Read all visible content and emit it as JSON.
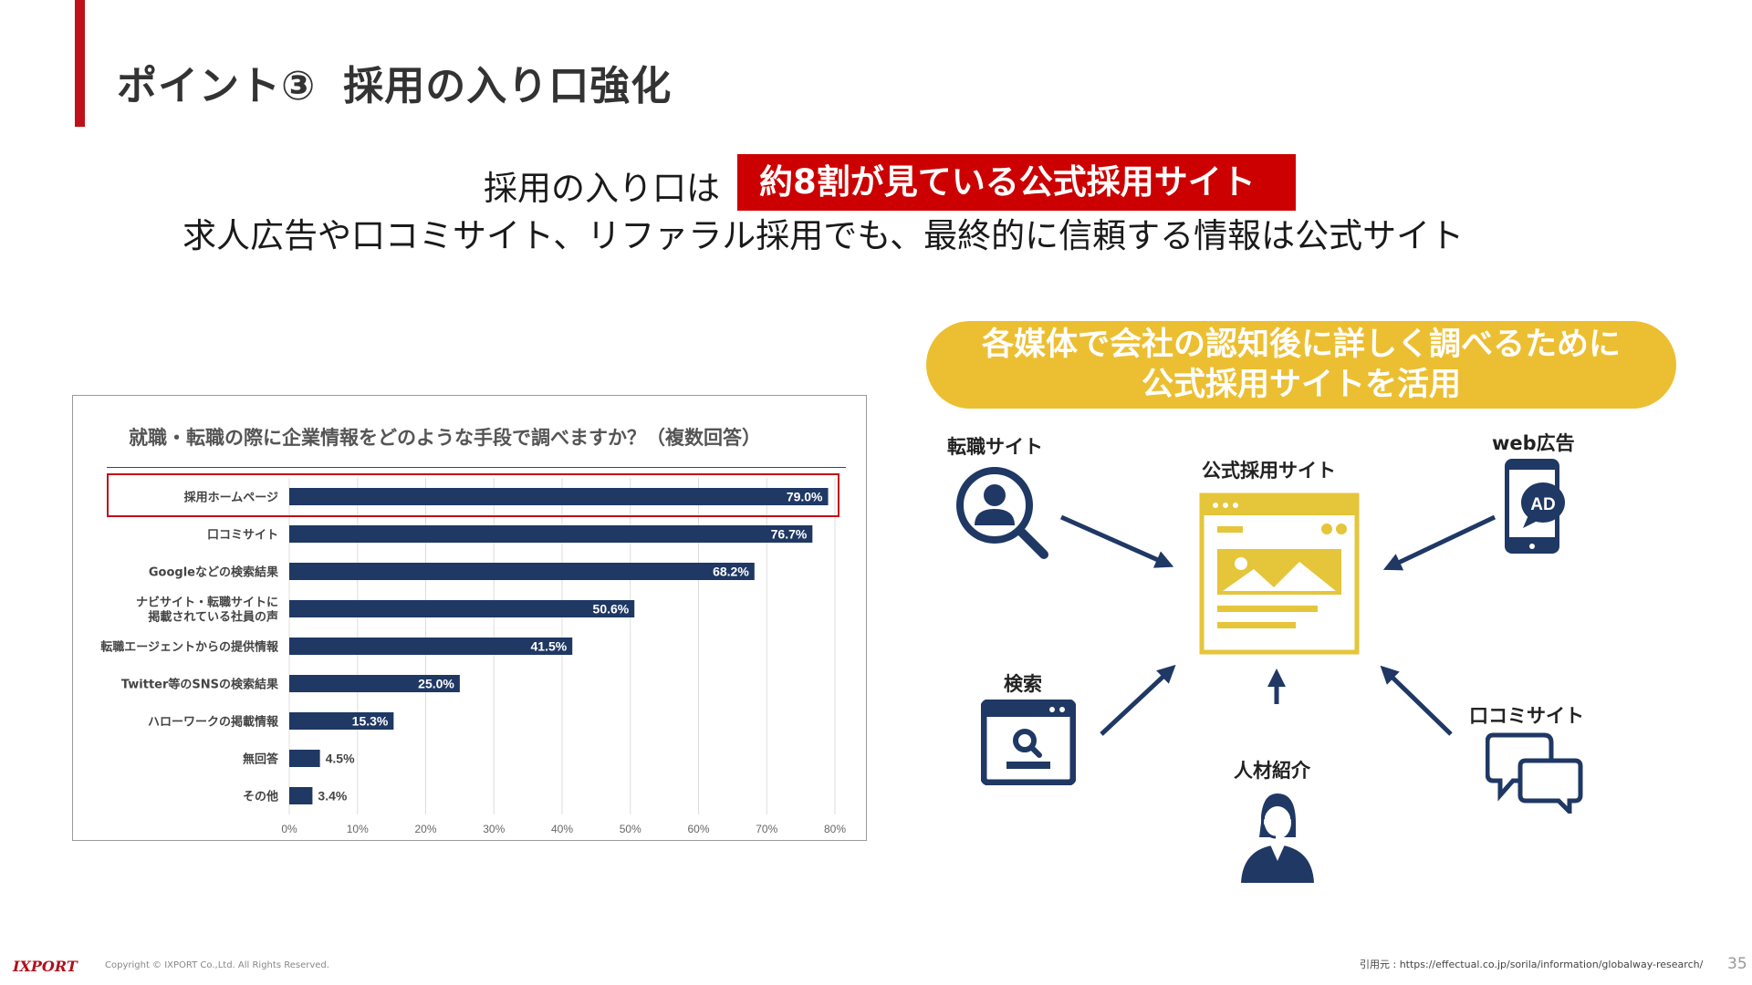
{
  "slide": {
    "title_part1": "ポイント③",
    "title_part2": "採用の入り口強化",
    "headline1_prefix": "採用の入り口は",
    "headline1_highlight": "約8割が見ている公式採用サイト",
    "headline2": "求人広告や口コミサイト、リファラル採用でも、最終的に信頼する情報は公式サイト",
    "accent_color": "#c0101a",
    "highlight_color": "#cc0000",
    "pill_color": "#ecbf32",
    "navy_color": "#1f3864"
  },
  "chart_data": {
    "type": "bar",
    "orientation": "horizontal",
    "title": "就職・転職の際に企業情報をどのような手段で調べますか？（複数回答）",
    "categories": [
      [
        "採用ホームページ"
      ],
      [
        "口コミサイト"
      ],
      [
        "Googleなどの検索結果"
      ],
      [
        "ナビサイト・転職サイトに",
        "掲載されている社員の声"
      ],
      [
        "転職エージェントからの提供情報"
      ],
      [
        "Twitter等のSNSの検索結果"
      ],
      [
        "ハローワークの掲載情報"
      ],
      [
        "無回答"
      ],
      [
        "その他"
      ]
    ],
    "values": [
      79.0,
      76.7,
      68.2,
      50.6,
      41.5,
      25.0,
      15.3,
      4.5,
      3.4
    ],
    "value_labels": [
      "79.0%",
      "76.7%",
      "68.2%",
      "50.6%",
      "41.5%",
      "25.0%",
      "15.3%",
      "4.5%",
      "3.4%"
    ],
    "xlim": [
      0,
      80
    ],
    "xticks": [
      "0%",
      "10%",
      "20%",
      "30%",
      "40%",
      "50%",
      "60%",
      "70%",
      "80%"
    ],
    "grid": true,
    "highlighted_category": "採用ホームページ",
    "bar_color": "#1f3864"
  },
  "diagram": {
    "pill_line1": "各媒体で会社の認知後に詳しく調べるために",
    "pill_line2": "公式採用サイトを活用",
    "center_label": "公式採用サイト",
    "nodes": {
      "job_site": "転職サイト",
      "web_ad": "web広告",
      "search": "検索",
      "review_site": "口コミサイト",
      "referral": "人材紹介"
    },
    "ad_badge": "AD",
    "icons": {
      "job_site": "magnifier-person-icon",
      "web_ad": "smartphone-ad-icon",
      "search": "browser-search-icon",
      "review_site": "chat-bubbles-icon",
      "referral": "person-headset-icon",
      "center": "website-icon"
    }
  },
  "footer": {
    "logo": "IXPORT",
    "copyright": "Copyright © IXPORT Co.,Ltd. All Rights Reserved.",
    "source": "引用元 : https://effectual.co.jp/sorila/information/globalway-research/",
    "page_number": "35"
  }
}
